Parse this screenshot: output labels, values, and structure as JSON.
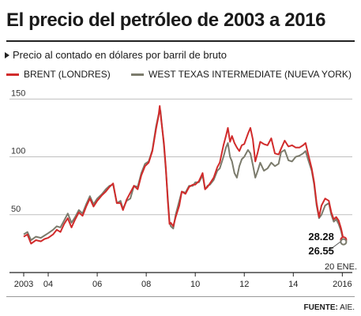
{
  "header": {
    "title": "El precio del petróleo de 2003 a 2016",
    "subtitle": "Precio al contado en dólares por barril de bruto"
  },
  "footer": {
    "source_label": "FUENTE:",
    "source_value": "AIE."
  },
  "colors": {
    "brent": "#d12b2b",
    "wti": "#7b7b6c",
    "grid": "#bfbfbf",
    "axis": "#222222"
  },
  "chart_data": {
    "type": "line",
    "ylim": [
      0,
      155
    ],
    "xlim": [
      2003.0,
      2016.15
    ],
    "y_ticks": [
      50,
      100,
      150
    ],
    "x_ticks": [
      {
        "value": 2003,
        "label": "2003"
      },
      {
        "value": 2004,
        "label": "04"
      },
      {
        "value": 2006,
        "label": "06"
      },
      {
        "value": 2008,
        "label": "08"
      },
      {
        "value": 2010,
        "label": "10"
      },
      {
        "value": 2012,
        "label": "12"
      },
      {
        "value": 2014,
        "label": "14"
      },
      {
        "value": 2016,
        "label": "2016"
      }
    ],
    "end_labels": [
      {
        "series": "brent",
        "text": "28.28"
      },
      {
        "series": "wti",
        "text": "26.55"
      }
    ],
    "end_date_label": "20 ENE.",
    "series": [
      {
        "key": "brent",
        "name": "BRENT (LONDRES)",
        "points": [
          [
            2003.0,
            31
          ],
          [
            2003.15,
            33
          ],
          [
            2003.3,
            25
          ],
          [
            2003.5,
            28
          ],
          [
            2003.7,
            27
          ],
          [
            2003.85,
            29
          ],
          [
            2004.0,
            30
          ],
          [
            2004.2,
            33
          ],
          [
            2004.35,
            37
          ],
          [
            2004.5,
            35
          ],
          [
            2004.65,
            42
          ],
          [
            2004.8,
            47
          ],
          [
            2004.95,
            39
          ],
          [
            2005.1,
            46
          ],
          [
            2005.25,
            52
          ],
          [
            2005.4,
            49
          ],
          [
            2005.55,
            57
          ],
          [
            2005.7,
            64
          ],
          [
            2005.85,
            57
          ],
          [
            2006.0,
            62
          ],
          [
            2006.2,
            67
          ],
          [
            2006.35,
            70
          ],
          [
            2006.5,
            74
          ],
          [
            2006.65,
            77
          ],
          [
            2006.8,
            60
          ],
          [
            2006.95,
            60
          ],
          [
            2007.05,
            54
          ],
          [
            2007.2,
            63
          ],
          [
            2007.35,
            69
          ],
          [
            2007.5,
            75
          ],
          [
            2007.65,
            72
          ],
          [
            2007.8,
            84
          ],
          [
            2007.95,
            92
          ],
          [
            2008.1,
            95
          ],
          [
            2008.25,
            105
          ],
          [
            2008.4,
            124
          ],
          [
            2008.5,
            135
          ],
          [
            2008.55,
            144
          ],
          [
            2008.62,
            130
          ],
          [
            2008.72,
            112
          ],
          [
            2008.8,
            90
          ],
          [
            2008.88,
            62
          ],
          [
            2008.95,
            42
          ],
          [
            2009.0,
            43
          ],
          [
            2009.1,
            40
          ],
          [
            2009.2,
            48
          ],
          [
            2009.35,
            58
          ],
          [
            2009.45,
            70
          ],
          [
            2009.6,
            68
          ],
          [
            2009.75,
            74
          ],
          [
            2009.9,
            76
          ],
          [
            2010.0,
            76
          ],
          [
            2010.15,
            79
          ],
          [
            2010.3,
            86
          ],
          [
            2010.4,
            72
          ],
          [
            2010.5,
            74
          ],
          [
            2010.6,
            77
          ],
          [
            2010.75,
            82
          ],
          [
            2010.9,
            91
          ],
          [
            2011.0,
            95
          ],
          [
            2011.15,
            110
          ],
          [
            2011.25,
            118
          ],
          [
            2011.33,
            125
          ],
          [
            2011.42,
            113
          ],
          [
            2011.5,
            118
          ],
          [
            2011.6,
            112
          ],
          [
            2011.7,
            108
          ],
          [
            2011.8,
            105
          ],
          [
            2011.9,
            110
          ],
          [
            2012.0,
            111
          ],
          [
            2012.15,
            120
          ],
          [
            2012.25,
            125
          ],
          [
            2012.35,
            115
          ],
          [
            2012.45,
            96
          ],
          [
            2012.55,
            104
          ],
          [
            2012.65,
            113
          ],
          [
            2012.8,
            111
          ],
          [
            2012.95,
            110
          ],
          [
            2013.1,
            116
          ],
          [
            2013.25,
            103
          ],
          [
            2013.4,
            102
          ],
          [
            2013.5,
            107
          ],
          [
            2013.65,
            114
          ],
          [
            2013.8,
            109
          ],
          [
            2013.95,
            110
          ],
          [
            2014.1,
            108
          ],
          [
            2014.25,
            108
          ],
          [
            2014.4,
            110
          ],
          [
            2014.5,
            112
          ],
          [
            2014.6,
            103
          ],
          [
            2014.75,
            90
          ],
          [
            2014.85,
            78
          ],
          [
            2014.95,
            60
          ],
          [
            2015.05,
            48
          ],
          [
            2015.15,
            58
          ],
          [
            2015.3,
            64
          ],
          [
            2015.45,
            62
          ],
          [
            2015.55,
            52
          ],
          [
            2015.65,
            46
          ],
          [
            2015.75,
            48
          ],
          [
            2015.85,
            45
          ],
          [
            2015.95,
            38
          ],
          [
            2016.05,
            28.28
          ]
        ]
      },
      {
        "key": "wti",
        "name": "WEST TEXAS INTERMEDIATE (NUEVA YORK)",
        "points": [
          [
            2003.0,
            33
          ],
          [
            2003.15,
            35
          ],
          [
            2003.3,
            28
          ],
          [
            2003.5,
            31
          ],
          [
            2003.7,
            30
          ],
          [
            2003.85,
            32
          ],
          [
            2004.0,
            34
          ],
          [
            2004.2,
            37
          ],
          [
            2004.35,
            40
          ],
          [
            2004.5,
            39
          ],
          [
            2004.65,
            45
          ],
          [
            2004.8,
            51
          ],
          [
            2004.95,
            43
          ],
          [
            2005.1,
            48
          ],
          [
            2005.25,
            54
          ],
          [
            2005.4,
            51
          ],
          [
            2005.55,
            59
          ],
          [
            2005.7,
            66
          ],
          [
            2005.85,
            59
          ],
          [
            2006.0,
            64
          ],
          [
            2006.2,
            68
          ],
          [
            2006.35,
            72
          ],
          [
            2006.5,
            75
          ],
          [
            2006.65,
            76
          ],
          [
            2006.8,
            60
          ],
          [
            2006.95,
            62
          ],
          [
            2007.05,
            55
          ],
          [
            2007.2,
            62
          ],
          [
            2007.35,
            64
          ],
          [
            2007.5,
            75
          ],
          [
            2007.65,
            74
          ],
          [
            2007.8,
            86
          ],
          [
            2007.95,
            94
          ],
          [
            2008.1,
            96
          ],
          [
            2008.25,
            106
          ],
          [
            2008.4,
            126
          ],
          [
            2008.5,
            136
          ],
          [
            2008.58,
            140
          ],
          [
            2008.65,
            125
          ],
          [
            2008.72,
            110
          ],
          [
            2008.8,
            88
          ],
          [
            2008.88,
            65
          ],
          [
            2008.95,
            44
          ],
          [
            2009.0,
            40
          ],
          [
            2009.1,
            38
          ],
          [
            2009.2,
            50
          ],
          [
            2009.35,
            62
          ],
          [
            2009.45,
            70
          ],
          [
            2009.6,
            69
          ],
          [
            2009.75,
            75
          ],
          [
            2009.9,
            75
          ],
          [
            2010.0,
            78
          ],
          [
            2010.15,
            78
          ],
          [
            2010.3,
            84
          ],
          [
            2010.4,
            72
          ],
          [
            2010.5,
            75
          ],
          [
            2010.6,
            76
          ],
          [
            2010.75,
            80
          ],
          [
            2010.9,
            88
          ],
          [
            2011.0,
            90
          ],
          [
            2011.15,
            100
          ],
          [
            2011.25,
            108
          ],
          [
            2011.33,
            112
          ],
          [
            2011.42,
            100
          ],
          [
            2011.5,
            96
          ],
          [
            2011.6,
            86
          ],
          [
            2011.7,
            82
          ],
          [
            2011.8,
            92
          ],
          [
            2011.9,
            98
          ],
          [
            2012.0,
            100
          ],
          [
            2012.15,
            106
          ],
          [
            2012.25,
            103
          ],
          [
            2012.35,
            93
          ],
          [
            2012.45,
            82
          ],
          [
            2012.55,
            88
          ],
          [
            2012.65,
            95
          ],
          [
            2012.8,
            88
          ],
          [
            2012.95,
            90
          ],
          [
            2013.1,
            95
          ],
          [
            2013.25,
            92
          ],
          [
            2013.4,
            94
          ],
          [
            2013.5,
            104
          ],
          [
            2013.65,
            106
          ],
          [
            2013.8,
            97
          ],
          [
            2013.95,
            96
          ],
          [
            2014.1,
            100
          ],
          [
            2014.25,
            101
          ],
          [
            2014.4,
            103
          ],
          [
            2014.5,
            105
          ],
          [
            2014.6,
            98
          ],
          [
            2014.75,
            88
          ],
          [
            2014.85,
            76
          ],
          [
            2014.95,
            58
          ],
          [
            2015.05,
            47
          ],
          [
            2015.15,
            50
          ],
          [
            2015.3,
            58
          ],
          [
            2015.45,
            60
          ],
          [
            2015.55,
            50
          ],
          [
            2015.65,
            44
          ],
          [
            2015.75,
            46
          ],
          [
            2015.85,
            42
          ],
          [
            2015.95,
            36
          ],
          [
            2016.05,
            26.55
          ]
        ]
      }
    ]
  }
}
